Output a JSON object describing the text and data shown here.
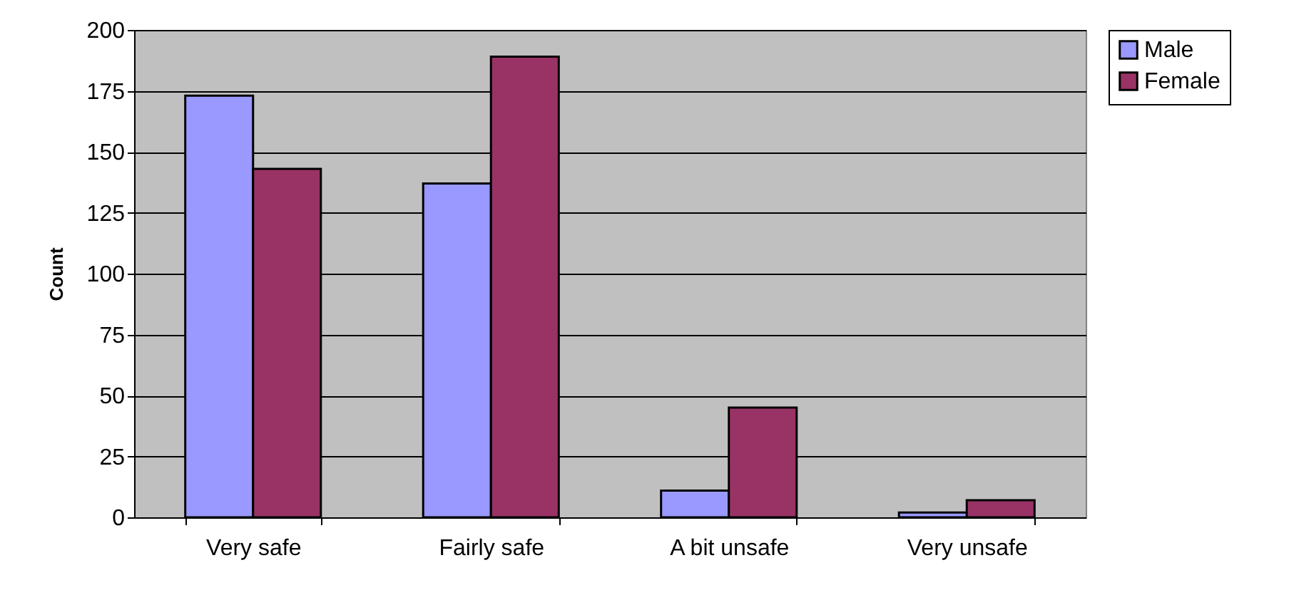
{
  "chart_data": {
    "type": "bar",
    "ylabel": "Count",
    "categories": [
      "Very safe",
      "Fairly safe",
      "A bit unsafe",
      "Very unsafe"
    ],
    "series": [
      {
        "name": "Male",
        "color": "#9999ff",
        "values": [
          173,
          137,
          11,
          2
        ]
      },
      {
        "name": "Female",
        "color": "#993366",
        "values": [
          143,
          189,
          45,
          7
        ]
      }
    ],
    "ylim": [
      0,
      200
    ],
    "yticks": [
      0,
      25,
      50,
      75,
      100,
      125,
      150,
      175,
      200
    ],
    "grid": "y",
    "legend": "right"
  }
}
